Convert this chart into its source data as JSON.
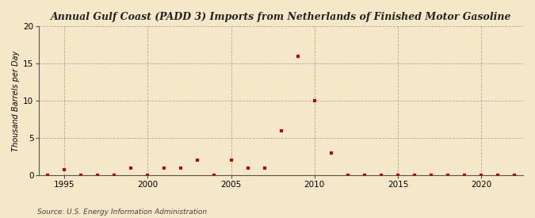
{
  "title": "Annual Gulf Coast (PADD 3) Imports from Netherlands of Finished Motor Gasoline",
  "ylabel": "Thousand Barrels per Day",
  "source": "Source: U.S. Energy Information Administration",
  "background_color": "#f5e8c8",
  "marker_color": "#cc0000",
  "grid_color": "#999999",
  "xlim": [
    1993.5,
    2022.5
  ],
  "ylim": [
    0,
    20
  ],
  "yticks": [
    0,
    5,
    10,
    15,
    20
  ],
  "xticks": [
    1995,
    2000,
    2005,
    2010,
    2015,
    2020
  ],
  "data": [
    {
      "year": 1994,
      "value": 0.0
    },
    {
      "year": 1995,
      "value": 0.8
    },
    {
      "year": 1996,
      "value": 0.0
    },
    {
      "year": 1997,
      "value": 0.0
    },
    {
      "year": 1998,
      "value": 0.0
    },
    {
      "year": 1999,
      "value": 1.0
    },
    {
      "year": 2000,
      "value": 0.0
    },
    {
      "year": 2001,
      "value": 1.0
    },
    {
      "year": 2002,
      "value": 1.0
    },
    {
      "year": 2003,
      "value": 2.0
    },
    {
      "year": 2004,
      "value": 0.0
    },
    {
      "year": 2005,
      "value": 2.0
    },
    {
      "year": 2006,
      "value": 1.0
    },
    {
      "year": 2007,
      "value": 1.0
    },
    {
      "year": 2008,
      "value": 6.0
    },
    {
      "year": 2009,
      "value": 16.0
    },
    {
      "year": 2010,
      "value": 10.0
    },
    {
      "year": 2011,
      "value": 3.0
    },
    {
      "year": 2012,
      "value": 0.0
    },
    {
      "year": 2013,
      "value": 0.0
    },
    {
      "year": 2014,
      "value": 0.0
    },
    {
      "year": 2015,
      "value": 0.0
    },
    {
      "year": 2016,
      "value": 0.0
    },
    {
      "year": 2017,
      "value": 0.0
    },
    {
      "year": 2018,
      "value": 0.0
    },
    {
      "year": 2019,
      "value": 0.0
    },
    {
      "year": 2020,
      "value": 0.0
    },
    {
      "year": 2021,
      "value": 0.0
    },
    {
      "year": 2022,
      "value": 0.0
    }
  ]
}
